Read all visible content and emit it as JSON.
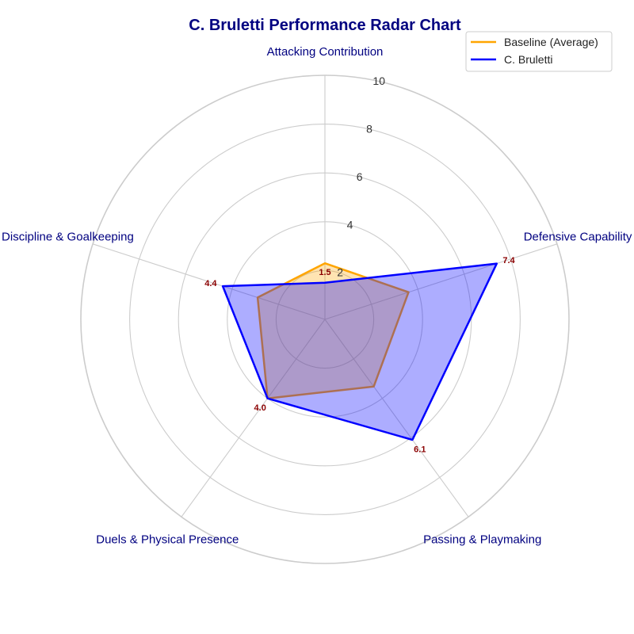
{
  "chart_data": {
    "type": "radar",
    "title": "C. Bruletti Performance Radar Chart",
    "axes": [
      "Attacking Contribution",
      "Defensive Capability",
      "Passing & Playmaking",
      "Duels & Physical Presence",
      "Discipline & Goalkeeping"
    ],
    "rlim": [
      0,
      10
    ],
    "rticks": [
      2,
      4,
      6,
      8,
      10
    ],
    "grid": true,
    "legend_position": "top-right",
    "series": [
      {
        "name": "Baseline (Average)",
        "values": [
          2.3,
          3.6,
          3.4,
          4.0,
          2.9
        ],
        "color": "#FFA500",
        "fill": "#FFA500",
        "fill_opacity": 0.3
      },
      {
        "name": "C. Bruletti",
        "values": [
          1.5,
          7.4,
          6.1,
          4.0,
          4.4
        ],
        "color": "#0000FF",
        "fill": "#0000FF",
        "fill_opacity": 0.32,
        "show_value_labels": true
      }
    ],
    "colors": {
      "title": "#000080",
      "axis_label": "#000080",
      "value_label": "#8B0000",
      "grid": "#cccccc"
    }
  }
}
